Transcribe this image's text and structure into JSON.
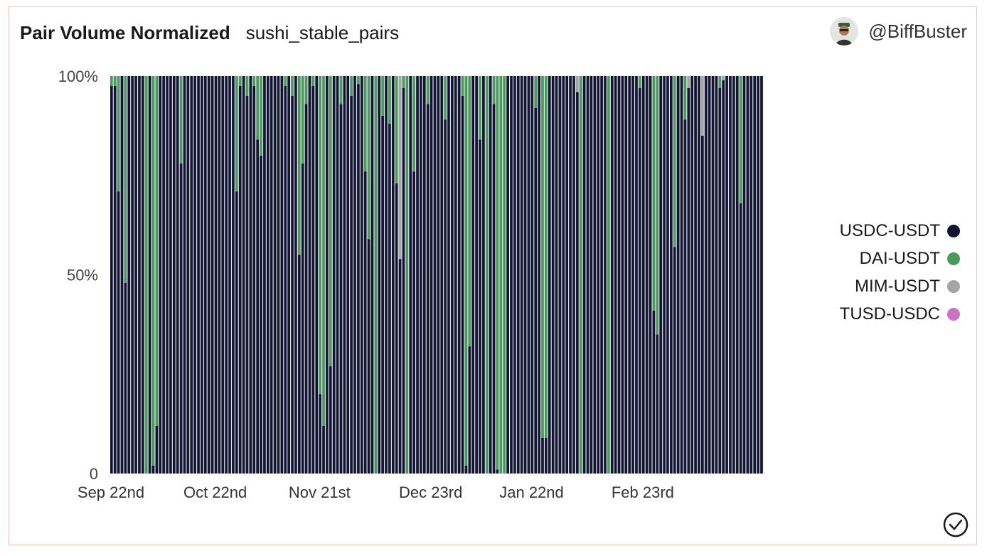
{
  "header": {
    "title": "Pair Volume Normalized",
    "subtitle": "sushi_stable_pairs"
  },
  "author": {
    "name": "@BiffBuster",
    "avatar_icon": "avatar-icon"
  },
  "colors": {
    "USDC-USDT": "#131633",
    "DAI-USDT": "#4b9a5d",
    "MIM-USDT": "#a5a5a5",
    "TUSD-USDC": "#c874c0",
    "gap": "#e3e3ea"
  },
  "chart_data": {
    "type": "bar",
    "stacked": true,
    "normalized": true,
    "title": "Pair Volume Normalized",
    "subtitle": "sushi_stable_pairs",
    "xlabel": "",
    "ylabel": "",
    "ylim": [
      0,
      100
    ],
    "yticks": [
      "0",
      "50%",
      "100%"
    ],
    "xticks": [
      "Sep 22nd",
      "Oct 22nd",
      "Nov 21st",
      "Dec 23rd",
      "Jan 22nd",
      "Feb 23rd"
    ],
    "legend": "right",
    "series": [
      {
        "name": "USDC-USDT",
        "values": [
          97.5,
          97.5,
          71,
          100,
          48,
          100,
          100,
          100,
          100,
          100,
          0,
          100,
          2,
          12,
          100,
          100,
          100,
          100,
          100,
          100,
          78,
          100,
          100,
          100,
          100,
          100,
          100,
          100,
          100,
          100,
          100,
          100,
          100,
          100,
          100,
          100,
          71,
          97.5,
          100,
          95,
          100,
          97.5,
          84,
          80,
          100,
          100,
          100,
          100,
          100,
          100,
          97.5,
          100,
          95,
          100,
          55,
          78,
          93,
          100,
          97.5,
          100,
          20,
          12,
          100,
          27,
          100,
          100,
          93,
          100,
          100,
          95,
          100,
          98,
          100,
          76,
          59,
          100,
          0,
          100,
          90,
          100,
          88,
          100,
          73,
          100,
          97,
          0,
          100,
          76,
          100,
          100,
          100,
          93,
          100,
          100,
          100,
          100,
          89,
          100,
          100,
          100,
          100,
          95,
          2,
          32,
          100,
          100,
          84,
          100,
          0,
          100,
          93,
          1,
          0,
          0,
          100,
          100,
          100,
          100,
          100,
          100,
          100,
          100,
          92,
          100,
          9,
          9,
          100,
          100,
          100,
          100,
          100,
          100,
          100,
          100,
          100,
          0,
          100,
          100,
          100,
          100,
          100,
          100,
          100,
          0,
          100,
          100,
          100,
          100,
          100,
          100,
          100,
          98,
          97,
          100,
          100,
          100,
          41,
          35,
          100,
          100,
          100,
          100,
          57,
          100,
          100,
          89,
          100,
          100,
          100,
          100,
          100,
          100,
          100,
          100,
          100,
          97,
          100,
          100,
          100,
          100,
          100,
          68,
          100,
          100,
          100,
          100,
          100,
          100
        ]
      },
      {
        "name": "DAI-USDT",
        "values": [
          2.5,
          2.5,
          29,
          0,
          52,
          0,
          0,
          0,
          0,
          0,
          100,
          0,
          98,
          88,
          0,
          0,
          0,
          0,
          0,
          0,
          22,
          0,
          0,
          0,
          0,
          0,
          0,
          0,
          0,
          0,
          0,
          0,
          0,
          0,
          0,
          0,
          29,
          2.5,
          0,
          5,
          0,
          2.5,
          16,
          20,
          0,
          0,
          0,
          0,
          0,
          0,
          2.5,
          0,
          5,
          0,
          45,
          22,
          7,
          0,
          2.5,
          0,
          80,
          88,
          0,
          73,
          0,
          0,
          7,
          0,
          0,
          5,
          0,
          2,
          0,
          24,
          41,
          0,
          100,
          0,
          10,
          0,
          12,
          0,
          27,
          0,
          3,
          100,
          0,
          24,
          0,
          0,
          0,
          7,
          0,
          0,
          0,
          0,
          11,
          0,
          0,
          0,
          0,
          5,
          98,
          68,
          0,
          0,
          16,
          0,
          100,
          0,
          7,
          99,
          100,
          100,
          0,
          0,
          0,
          0,
          0,
          0,
          0,
          0,
          8,
          0,
          91,
          91,
          0,
          0,
          0,
          0,
          0,
          0,
          0,
          0,
          0,
          100,
          0,
          0,
          0,
          0,
          0,
          0,
          0,
          100,
          0,
          0,
          0,
          0,
          0,
          0,
          0,
          0,
          3,
          0,
          0,
          0,
          59,
          65,
          0,
          0,
          0,
          0,
          43,
          0,
          0,
          11,
          0,
          0,
          0,
          0,
          0,
          0,
          0,
          0,
          0,
          3,
          0,
          0,
          0,
          0,
          0,
          32,
          0,
          0,
          0,
          0,
          0,
          0
        ]
      },
      {
        "name": "MIM-USDT",
        "values": [
          0,
          0,
          0,
          0,
          0,
          0,
          0,
          0,
          0,
          0,
          0,
          0,
          0,
          0,
          0,
          0,
          0,
          0,
          0,
          0,
          0,
          0,
          0,
          0,
          0,
          0,
          0,
          0,
          0,
          0,
          0,
          0,
          0,
          0,
          0,
          0,
          0,
          0,
          0,
          0,
          0,
          0,
          0,
          0,
          0,
          0,
          0,
          0,
          0,
          0,
          0,
          0,
          0,
          0,
          0,
          0,
          0,
          0,
          0,
          0,
          0,
          0,
          0,
          0,
          0,
          0,
          0,
          0,
          0,
          0,
          0,
          0,
          0,
          0,
          0,
          0,
          0,
          0,
          0,
          0,
          0,
          0,
          0,
          0,
          0,
          0,
          0,
          0,
          0,
          0,
          0,
          0,
          0,
          0,
          0,
          0,
          0,
          0,
          0,
          0,
          0,
          0,
          0,
          0,
          0,
          0,
          0,
          0,
          0,
          0,
          0,
          0,
          0,
          0,
          0,
          0,
          0,
          0,
          0,
          0,
          0,
          0,
          0,
          0,
          0,
          0,
          0,
          0,
          0,
          0,
          0,
          0,
          0,
          0,
          0,
          0,
          0,
          0,
          0,
          0,
          0,
          0,
          0,
          0,
          0,
          0,
          0,
          0,
          0,
          0,
          0,
          0,
          0,
          0,
          0,
          0,
          0,
          0,
          0,
          0,
          0,
          0,
          0,
          0,
          0,
          0,
          0,
          0,
          0,
          0,
          0,
          0,
          0,
          0,
          0,
          0,
          0,
          0,
          0,
          0,
          0,
          0,
          0,
          0,
          0,
          0,
          0,
          0,
          0,
          0,
          0,
          0,
          0,
          0,
          0,
          0,
          0,
          0,
          0,
          0,
          0,
          0,
          0,
          0,
          0,
          0,
          0,
          0,
          0,
          0,
          0,
          0
        ]
      },
      {
        "name": "TUSD-USDC",
        "values": [
          0,
          0,
          0,
          0,
          0,
          0,
          0,
          0,
          0,
          0,
          0,
          0,
          0,
          0,
          0,
          0,
          0,
          0,
          0,
          0,
          0,
          0,
          0,
          0,
          0,
          0,
          0,
          0,
          0,
          0,
          0,
          0,
          0,
          0,
          0,
          0,
          0,
          0,
          0,
          0,
          0,
          0,
          0,
          0,
          0,
          0,
          0,
          0,
          0,
          0,
          0,
          0,
          0,
          0,
          0,
          0,
          0,
          0,
          0,
          0,
          0,
          0,
          0,
          0,
          0,
          0,
          0,
          0,
          0,
          0,
          0,
          0,
          0,
          0,
          0,
          0,
          0,
          0,
          0,
          0,
          0,
          0,
          0,
          0,
          0,
          0,
          0,
          0,
          0,
          0,
          0,
          0,
          0,
          0,
          0,
          0,
          0,
          0,
          0,
          0,
          0,
          0,
          0,
          0,
          0,
          0,
          0,
          0,
          0,
          0,
          0,
          0,
          0,
          0,
          0,
          0,
          0,
          0,
          0,
          0,
          0,
          0,
          0,
          0,
          0,
          0,
          0,
          0,
          0,
          0,
          0,
          0,
          0,
          0,
          0,
          0,
          0,
          0,
          0,
          0,
          0,
          0,
          0,
          0,
          0,
          0,
          0,
          0,
          0,
          0,
          0,
          0,
          0,
          0,
          0,
          0,
          0,
          0,
          0,
          0,
          0,
          0,
          0,
          0,
          0,
          0,
          0,
          0,
          0,
          0,
          0,
          0,
          0,
          0,
          0,
          0,
          0,
          0,
          0,
          0,
          0,
          0,
          0,
          0,
          0,
          0,
          0,
          0,
          0,
          0,
          0,
          0,
          0,
          0,
          0,
          0,
          0,
          0,
          0,
          0,
          0,
          0,
          0,
          0,
          0,
          0,
          0,
          0,
          0,
          0,
          0,
          0
        ]
      }
    ],
    "series_mim_overrides": [
      [
        83,
        0,
        46,
        54
      ],
      [
        134,
        0,
        4,
        0
      ],
      [
        166,
        0,
        3,
        0
      ],
      [
        170,
        0,
        15,
        0
      ],
      [
        176,
        0,
        1,
        0
      ]
    ]
  },
  "footer": {
    "check_icon": "check-circle-icon"
  }
}
